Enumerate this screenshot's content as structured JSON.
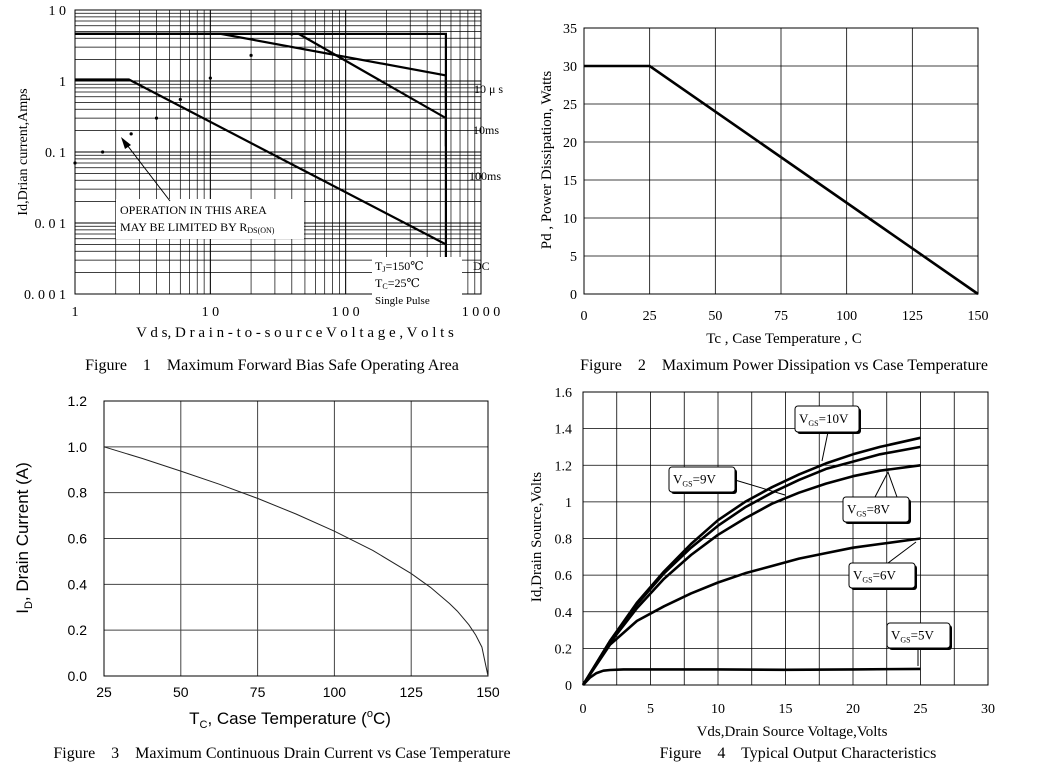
{
  "chart_data": [
    {
      "type": "line",
      "title": "Figure    1    Maximum Forward Bias Safe Operating Area",
      "xlabel": "V d s, D r a i n - t o - s o u r c e   V o l t a g e , V o l t s",
      "ylabel": "Id,Drian current,Amps",
      "xscale": "log",
      "yscale": "log",
      "xlim": [
        1,
        1000
      ],
      "ylim": [
        0.001,
        10
      ],
      "xticks": [
        {
          "v": 1,
          "label": "1"
        },
        {
          "v": 10,
          "label": "1 0"
        },
        {
          "v": 100,
          "label": "1 0 0"
        },
        {
          "v": 1000,
          "label": "1 0 0 0"
        }
      ],
      "yticks": [
        {
          "v": 10,
          "label": "1 0"
        },
        {
          "v": 1,
          "label": "1"
        },
        {
          "v": 0.1,
          "label": "0. 1"
        },
        {
          "v": 0.01,
          "label": "0. 0 1"
        },
        {
          "v": 0.001,
          "label": "0. 0 0 1"
        }
      ],
      "series": [
        {
          "name": "10 μ s",
          "x": [
            1,
            12,
            550,
            550
          ],
          "y": [
            4.6,
            4.6,
            1.2,
            0.5
          ]
        },
        {
          "name": "10ms",
          "x": [
            1,
            45,
            550,
            550
          ],
          "y": [
            4.6,
            4.6,
            0.3,
            0.12
          ]
        },
        {
          "name": "100ms",
          "x": [
            1,
            550,
            550
          ],
          "y": [
            4.6,
            4.6,
            0.001
          ]
        },
        {
          "name": "DC",
          "x": [
            1,
            2.5,
            550
          ],
          "y": [
            1.05,
            1.05,
            0.005
          ]
        },
        {
          "name": "RDS(ON) limit",
          "style": "dotted",
          "x": [
            1,
            1.6,
            2.6,
            4,
            6,
            10,
            20,
            40
          ],
          "y": [
            0.07,
            0.1,
            0.18,
            0.3,
            0.55,
            1.1,
            2.3,
            4.6
          ]
        }
      ],
      "labels": {
        "us10": "10 μ s",
        "ms10": "10ms",
        "ms100": "100ms",
        "dc": "DC"
      },
      "annotation": {
        "line1": "OPERATION IN THIS AREA",
        "line2": "MAY BE LIMITED BY R",
        "sub": "DS(ON)"
      },
      "conditions": {
        "tj": "T",
        "tj_sub": "J",
        "tj_val": "=150℃",
        "tc": "T",
        "tc_sub": "C",
        "tc_val": "=25℃",
        "pulse": "Single Pulse"
      }
    },
    {
      "type": "line",
      "title": "Figure    2    Maximum Power Dissipation vs Case Temperature",
      "xlabel": "Tc , Case Temperature , C",
      "ylabel": "Pd , Power Dissipation, Watts",
      "xlim": [
        0,
        150
      ],
      "ylim": [
        0,
        35
      ],
      "xticks": [
        0,
        25,
        50,
        75,
        100,
        125,
        150
      ],
      "yticks": [
        0,
        5,
        10,
        15,
        20,
        25,
        30,
        35
      ],
      "series": [
        {
          "name": "Pd",
          "x": [
            0,
            25,
            150
          ],
          "y": [
            30,
            30,
            0
          ]
        }
      ]
    },
    {
      "type": "line",
      "title": "Figure    3    Maximum Continuous Drain Current vs Case Temperature",
      "xlabel": "T",
      "xlabel_sub": "C",
      "xlabel_rest": ", Case Temperature (",
      "xlabel_sup": "o",
      "xlabel_end": "C)",
      "ylabel": "I",
      "ylabel_sub": "D",
      "ylabel_rest": ", Drain Current (A)",
      "xlim": [
        25,
        150
      ],
      "ylim": [
        0,
        1.2
      ],
      "xticks": [
        25,
        50,
        75,
        100,
        125,
        150
      ],
      "yticks": [
        "0.0",
        "0.2",
        "0.4",
        "0.6",
        "0.8",
        "1.0",
        "1.2"
      ],
      "series": [
        {
          "name": "ID",
          "x": [
            25,
            37.5,
            50,
            62.5,
            75,
            87.5,
            100,
            112.5,
            125,
            131.25,
            137.5,
            140,
            143.75,
            146,
            148,
            150
          ],
          "y": [
            1.0,
            0.949,
            0.894,
            0.837,
            0.775,
            0.707,
            0.632,
            0.548,
            0.447,
            0.387,
            0.316,
            0.283,
            0.224,
            0.179,
            0.126,
            0.0
          ]
        }
      ]
    },
    {
      "type": "line",
      "title": "Figure    4    Typical Output Characteristics",
      "xlabel": "Vds,Drain Source Voltage,Volts",
      "ylabel": "Id,Drain Source,Volts",
      "xlim": [
        0,
        30
      ],
      "ylim": [
        0,
        1.6
      ],
      "xticks": [
        "0",
        "5",
        "10",
        "15",
        "20",
        "25",
        "30"
      ],
      "yticks": [
        "0",
        "0.2",
        "0.4",
        "0.6",
        "0.8",
        "1",
        "1.2",
        "1.4",
        "1.6"
      ],
      "series": [
        {
          "name": "V",
          "sub": "GS",
          "val": "=10V",
          "x": [
            0,
            2,
            4,
            6,
            8,
            10,
            12,
            14,
            16,
            18,
            20,
            22,
            25
          ],
          "y": [
            0,
            0.24,
            0.45,
            0.62,
            0.77,
            0.9,
            1.0,
            1.08,
            1.15,
            1.21,
            1.26,
            1.3,
            1.35
          ]
        },
        {
          "name": "V",
          "sub": "GS",
          "val": "=9V",
          "x": [
            0,
            2,
            4,
            6,
            8,
            10,
            12,
            14,
            16,
            18,
            20,
            22,
            25
          ],
          "y": [
            0,
            0.24,
            0.44,
            0.61,
            0.75,
            0.87,
            0.97,
            1.05,
            1.12,
            1.18,
            1.22,
            1.26,
            1.3
          ]
        },
        {
          "name": "V",
          "sub": "GS",
          "val": "=8V",
          "x": [
            0,
            2,
            4,
            6,
            8,
            10,
            12,
            14,
            16,
            18,
            20,
            22,
            25
          ],
          "y": [
            0,
            0.23,
            0.42,
            0.58,
            0.71,
            0.82,
            0.91,
            0.99,
            1.05,
            1.1,
            1.14,
            1.17,
            1.2
          ]
        },
        {
          "name": "V",
          "sub": "GS",
          "val": "=6V",
          "x": [
            0,
            2,
            4,
            6,
            8,
            10,
            12,
            14,
            16,
            18,
            20,
            22,
            25
          ],
          "y": [
            0,
            0.22,
            0.35,
            0.43,
            0.5,
            0.56,
            0.61,
            0.65,
            0.69,
            0.72,
            0.75,
            0.77,
            0.8
          ]
        },
        {
          "name": "V",
          "sub": "GS",
          "val": "=5V",
          "x": [
            0,
            0.5,
            1,
            1.5,
            2,
            3,
            5,
            10,
            15,
            20,
            25
          ],
          "y": [
            0,
            0.04,
            0.065,
            0.078,
            0.082,
            0.085,
            0.085,
            0.085,
            0.083,
            0.085,
            0.088
          ]
        }
      ]
    }
  ]
}
